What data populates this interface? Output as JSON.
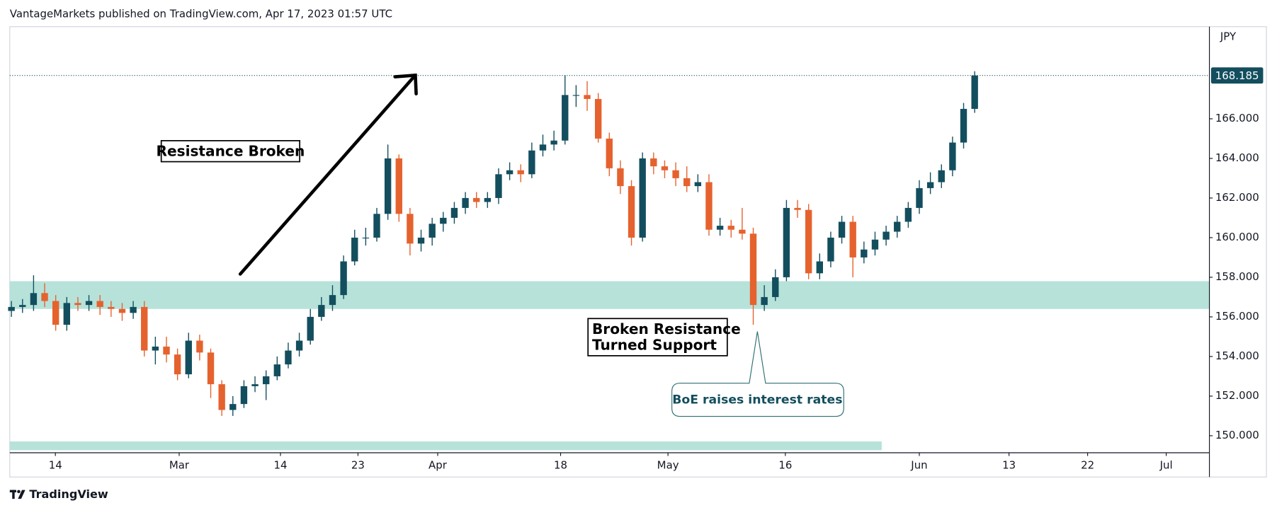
{
  "header": "VantageMarkets published on TradingView.com, Apr 17, 2023 01:57 UTC",
  "footer": "TradingView",
  "annotations": [
    "Resistance Broken",
    "Broken Resistance",
    "Turned Support",
    "BoE raises interest rates"
  ],
  "chart_data": {
    "type": "candlestick",
    "currency": "JPY",
    "up_color": "#134e5e",
    "down_color": "#e5622e",
    "zone_color": "#b6e2da",
    "last_price_color": "#134e5e",
    "open": [
      156.3,
      156.5,
      156.6,
      157.2,
      156.8,
      155.6,
      156.7,
      156.6,
      156.8,
      156.5,
      156.4,
      156.2,
      156.5,
      154.3,
      154.5,
      154.1,
      153.1,
      154.8,
      154.2,
      152.6,
      151.3,
      151.6,
      152.5,
      152.6,
      153.0,
      153.6,
      154.3,
      154.8,
      156.0,
      156.6,
      157.1,
      158.8,
      160.0,
      160.0,
      161.2,
      164.0,
      161.2,
      159.7,
      160.0,
      160.7,
      161.0,
      161.5,
      162.0,
      161.8,
      162.0,
      163.2,
      163.4,
      163.2,
      164.4,
      164.7,
      164.9,
      167.2,
      167.2,
      167.0,
      165.0,
      163.5,
      162.6,
      160.0,
      164.0,
      163.6,
      163.4,
      163.0,
      162.6,
      162.8,
      160.4,
      160.6,
      160.4,
      160.2,
      156.6,
      157.0,
      158.0,
      161.5,
      161.4,
      158.2,
      158.8,
      160.0,
      160.8,
      159.0,
      159.4,
      159.9,
      160.3,
      160.8,
      161.5,
      162.5,
      162.8,
      163.4,
      164.8,
      166.5
    ],
    "high": [
      156.8,
      156.9,
      158.1,
      157.7,
      157.1,
      157.0,
      157.0,
      157.1,
      157.1,
      156.8,
      156.7,
      156.8,
      156.8,
      155.0,
      155.0,
      154.4,
      155.2,
      155.1,
      154.4,
      152.8,
      152.0,
      152.8,
      153.0,
      153.3,
      154.0,
      154.7,
      155.2,
      156.4,
      157.0,
      157.6,
      159.1,
      160.4,
      160.5,
      161.5,
      164.7,
      164.2,
      161.5,
      160.4,
      161.0,
      161.3,
      161.8,
      162.3,
      162.3,
      162.3,
      163.5,
      163.8,
      163.7,
      164.8,
      165.2,
      165.4,
      168.2,
      167.7,
      167.9,
      167.3,
      165.3,
      163.9,
      162.9,
      164.3,
      164.3,
      163.9,
      163.8,
      163.6,
      163.2,
      163.2,
      161.0,
      160.9,
      161.5,
      160.5,
      157.6,
      158.4,
      161.9,
      161.9,
      161.7,
      159.2,
      160.3,
      161.1,
      161.1,
      159.8,
      160.3,
      160.6,
      161.1,
      161.8,
      162.9,
      163.3,
      163.7,
      165.1,
      166.8,
      168.4
    ],
    "low": [
      156.0,
      156.2,
      156.3,
      156.5,
      155.3,
      155.3,
      156.3,
      156.3,
      156.1,
      156.0,
      155.8,
      155.9,
      154.0,
      153.6,
      153.7,
      152.8,
      152.9,
      153.8,
      151.9,
      151.0,
      151.0,
      151.4,
      152.2,
      151.8,
      152.8,
      153.4,
      154.0,
      154.6,
      155.8,
      156.3,
      156.9,
      158.6,
      159.6,
      159.8,
      160.9,
      160.8,
      159.1,
      159.3,
      159.6,
      160.3,
      160.7,
      161.2,
      161.5,
      161.5,
      161.7,
      162.9,
      162.8,
      163.0,
      164.1,
      164.4,
      164.7,
      166.6,
      166.4,
      164.8,
      163.1,
      162.2,
      159.6,
      159.8,
      163.2,
      163.0,
      162.6,
      162.3,
      162.3,
      160.1,
      160.1,
      160.0,
      159.9,
      155.6,
      156.3,
      156.8,
      157.8,
      161.0,
      157.9,
      157.9,
      158.5,
      159.7,
      158.0,
      158.7,
      159.1,
      159.6,
      160.0,
      160.5,
      161.2,
      162.2,
      162.5,
      163.1,
      164.5,
      166.3
    ],
    "close": [
      156.5,
      156.6,
      157.2,
      156.8,
      155.6,
      156.7,
      156.6,
      156.8,
      156.5,
      156.4,
      156.2,
      156.5,
      154.3,
      154.5,
      154.1,
      153.1,
      154.8,
      154.2,
      152.6,
      151.3,
      151.6,
      152.5,
      152.6,
      153.0,
      153.6,
      154.3,
      154.8,
      156.0,
      156.6,
      157.1,
      158.8,
      160.0,
      160.0,
      161.2,
      164.0,
      161.2,
      159.7,
      160.0,
      160.7,
      161.0,
      161.5,
      162.0,
      161.8,
      162.0,
      163.2,
      163.4,
      163.2,
      164.4,
      164.7,
      164.9,
      167.2,
      167.2,
      167.0,
      165.0,
      163.5,
      162.6,
      160.0,
      164.0,
      163.6,
      163.4,
      163.0,
      162.6,
      162.8,
      160.4,
      160.6,
      160.4,
      160.2,
      156.6,
      157.0,
      158.0,
      161.5,
      161.4,
      158.2,
      158.8,
      160.0,
      160.8,
      159.0,
      159.4,
      159.9,
      160.3,
      160.8,
      161.5,
      162.5,
      162.8,
      163.4,
      164.8,
      166.5,
      168.185
    ],
    "xlim": [
      -0.15,
      108.2
    ],
    "xticks": [
      {
        "value": 3.97,
        "label": "14"
      },
      {
        "value": 15.15,
        "label": "Mar"
      },
      {
        "value": 24.3,
        "label": "14"
      },
      {
        "value": 31.3,
        "label": "23"
      },
      {
        "value": 38.5,
        "label": "Apr"
      },
      {
        "value": 49.6,
        "label": "18"
      },
      {
        "value": 59.3,
        "label": "May"
      },
      {
        "value": 69.9,
        "label": "16"
      },
      {
        "value": 82.0,
        "label": "Jun"
      },
      {
        "value": 90.1,
        "label": "13"
      },
      {
        "value": 97.2,
        "label": "22"
      },
      {
        "value": 104.3,
        "label": "Jul"
      }
    ],
    "ylim": [
      149.14,
      170.65
    ],
    "yticks": [
      {
        "value": 150,
        "label": "150.000"
      },
      {
        "value": 152,
        "label": "152.000"
      },
      {
        "value": 154,
        "label": "154.000"
      },
      {
        "value": 156,
        "label": "156.000"
      },
      {
        "value": 158,
        "label": "158.000"
      },
      {
        "value": 160,
        "label": "160.000"
      },
      {
        "value": 162,
        "label": "162.000"
      },
      {
        "value": 164,
        "label": "164.000"
      },
      {
        "value": 166,
        "label": "166.000"
      }
    ],
    "grid": false,
    "zones": [
      {
        "low": 156.4,
        "high": 157.8
      },
      {
        "low": 149.27,
        "high": 149.71,
        "x_end": 78.6
      }
    ]
  }
}
